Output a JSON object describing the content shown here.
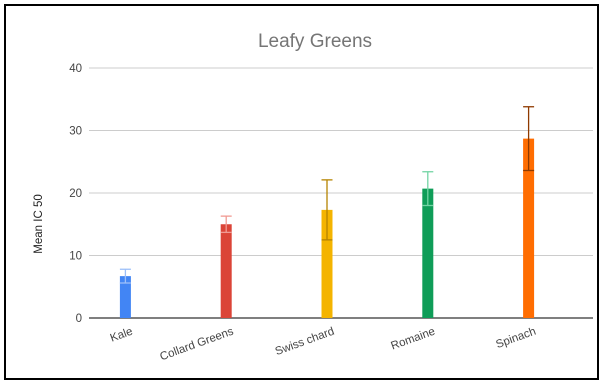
{
  "chart_data": {
    "type": "bar",
    "title": "Leafy Greens",
    "xlabel": "",
    "ylabel": "Mean IC 50",
    "ylim": [
      0,
      40
    ],
    "yticks": [
      0,
      10,
      20,
      30,
      40
    ],
    "grid": true,
    "legend": "none",
    "categories": [
      "Kale",
      "Collard Greens",
      "Swiss chard",
      "Romaine",
      "Spinach"
    ],
    "values": [
      6.7,
      15.0,
      17.3,
      20.7,
      28.7
    ],
    "error": [
      1.1,
      1.3,
      4.8,
      2.7,
      5.1
    ],
    "colors": [
      "#4285f4",
      "#db4437",
      "#f4b400",
      "#0f9d58",
      "#ff6d01"
    ],
    "error_colors": [
      "#9cbff9",
      "#f09a92",
      "#b58400",
      "#73d4a4",
      "#8f3a00"
    ]
  }
}
